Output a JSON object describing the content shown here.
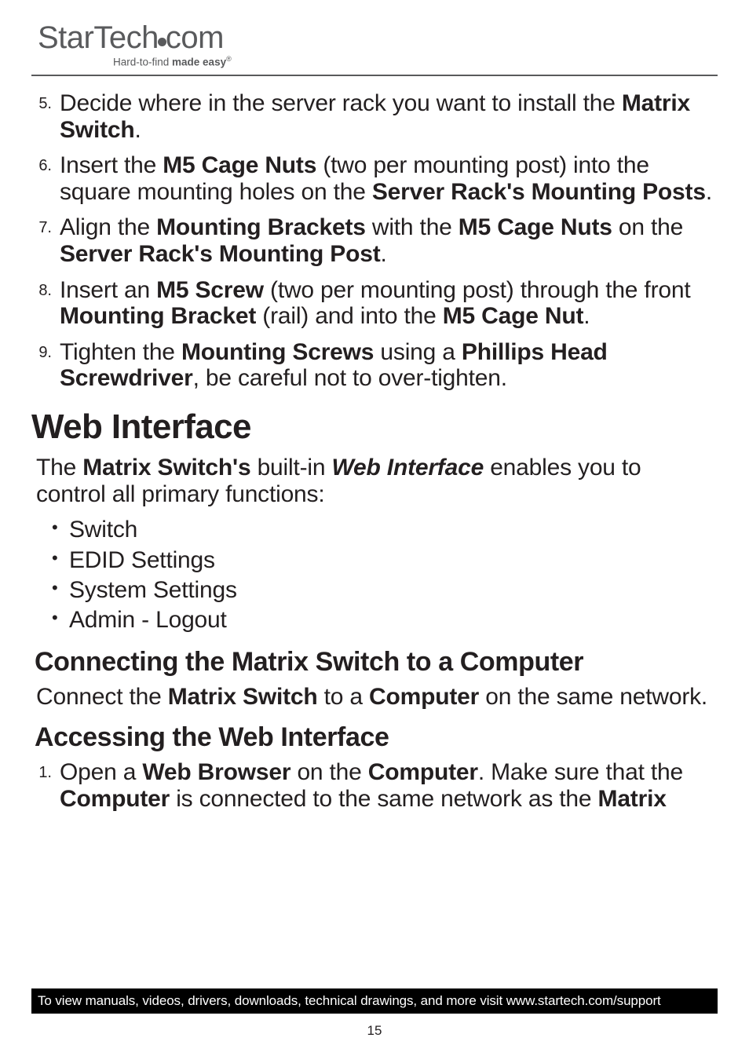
{
  "logo": {
    "brand_a": "StarTech",
    "brand_b": "com",
    "tagline_pre": "Hard-to-find ",
    "tagline_bold": "made easy",
    "reg": "®"
  },
  "ol1": [
    {
      "n": "5.",
      "t": "Decide where in the server rack you want to install the <b>Matrix Switch</b>."
    },
    {
      "n": "6.",
      "t": "Insert the <b>M5 Cage Nuts</b> (two per mounting post) into the square mounting holes on the <b>Server Rack's Mounting Posts</b>."
    },
    {
      "n": "7.",
      "t": "Align the <b>Mounting Brackets</b> with the <b>M5 Cage Nuts</b> on the <b>Server Rack's Mounting Post</b>."
    },
    {
      "n": "8.",
      "t": "Insert an <b>M5 Screw</b> (two per mounting post) through the front <b>Mounting Bracket</b> (rail) and into the <b>M5 Cage Nut</b>."
    },
    {
      "n": "9.",
      "t": "Tighten the <b>Mounting Screws</b> using a <b>Phillips Head Screwdriver</b>, be careful not to over-tighten."
    }
  ],
  "h1": "Web Interface",
  "lead": "The <b>Matrix Switch's</b> built-in <bi>Web Interface</bi> enables you to control all primary functions:",
  "bullets": [
    "Switch",
    "EDID Settings",
    "System Settings",
    "Admin - Logout"
  ],
  "h2a": "Connecting the Matrix Switch to a Computer",
  "para_a": "Connect the <b>Matrix Switch</b> to a <b>Computer</b> on the same network.",
  "h2b": "Accessing the Web Interface",
  "ol2": [
    {
      "n": "1.",
      "t": "Open a <b>Web Browser</b> on the <b>Computer</b>. Make sure that the <b>Computer</b> is connected to the same network as the <b>Matrix</b>"
    }
  ],
  "footer": "To view manuals, videos, drivers, downloads, technical drawings, and more visit www.startech.com/support",
  "page_num": "15",
  "colors": {
    "rule": "#595a5c",
    "text": "#231f20",
    "footer_bg": "#000000",
    "footer_fg": "#ffffff"
  }
}
